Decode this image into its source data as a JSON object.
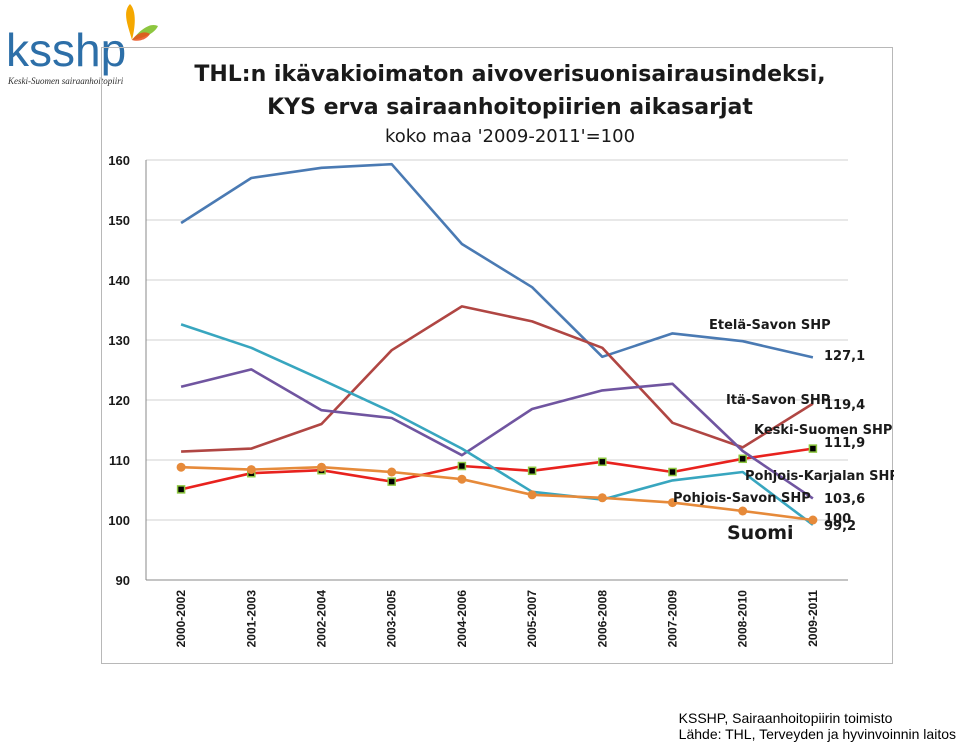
{
  "logo": {
    "text": "ksshp",
    "tagline": "Keski-Suomen sairaanhoitopiiri",
    "butterfly_colors": [
      "#f5a800",
      "#8dc63f",
      "#e94e1b"
    ]
  },
  "footer": {
    "line1": "KSSHP, Sairaanhoitopiirin toimisto",
    "line2": "Lähde:  THL, Terveyden ja hyvinvoinnin laitos"
  },
  "chart_data": {
    "type": "line",
    "title_lines": [
      "THL:n ikävakioimaton aivoverisuonisairausindeksi,",
      "KYS erva sairaanhoitopiirien aikasarjat"
    ],
    "subtitle": "koko maa '2009-2011'=100",
    "categories": [
      "2000-2002",
      "2001-2003",
      "2002-2004",
      "2003-2005",
      "2004-2006",
      "2005-2007",
      "2006-2008",
      "2007-2009",
      "2008-2010",
      "2009-2011"
    ],
    "ylim": [
      90,
      160
    ],
    "yticks": [
      90,
      100,
      110,
      120,
      130,
      140,
      150,
      160
    ],
    "grid": true,
    "series": [
      {
        "name": "Etelä-Savon SHP",
        "color": "#4a7ab3",
        "values": [
          149.5,
          157.0,
          158.7,
          159.3,
          146.0,
          138.8,
          127.2,
          131.1,
          129.8,
          127.1
        ],
        "end_label": "127,1"
      },
      {
        "name": "Itä-Savon SHP",
        "color": "#b04643",
        "values": [
          111.4,
          111.9,
          116.0,
          128.3,
          135.6,
          133.1,
          128.7,
          116.2,
          112.1,
          119.4
        ],
        "end_label": "119,4"
      },
      {
        "name": "Keski-Suomen SHP",
        "color": "#e8221e",
        "marker": "square",
        "values": [
          105.1,
          107.8,
          108.3,
          106.4,
          109.0,
          108.2,
          109.7,
          108.0,
          110.2,
          111.9
        ],
        "end_label": "111,9"
      },
      {
        "name": "Pohjois-Karjalan SHP",
        "color": "#7055a0",
        "values": [
          122.2,
          125.1,
          118.3,
          117.0,
          110.8,
          118.5,
          121.6,
          122.7,
          111.5,
          103.6
        ],
        "end_label": "103,6"
      },
      {
        "name": "Pohjois-Savon SHP",
        "color": "#38a6bf",
        "values": [
          132.6,
          128.7,
          123.4,
          118.0,
          111.9,
          104.7,
          103.4,
          106.6,
          108.0,
          99.2
        ],
        "end_label": "99,2"
      },
      {
        "name": "Suomi",
        "color": "#e68a3a",
        "marker": "circle",
        "values": [
          108.8,
          108.4,
          108.8,
          108.0,
          106.8,
          104.2,
          103.7,
          102.9,
          101.5,
          100.0
        ],
        "end_label": "100"
      }
    ]
  }
}
